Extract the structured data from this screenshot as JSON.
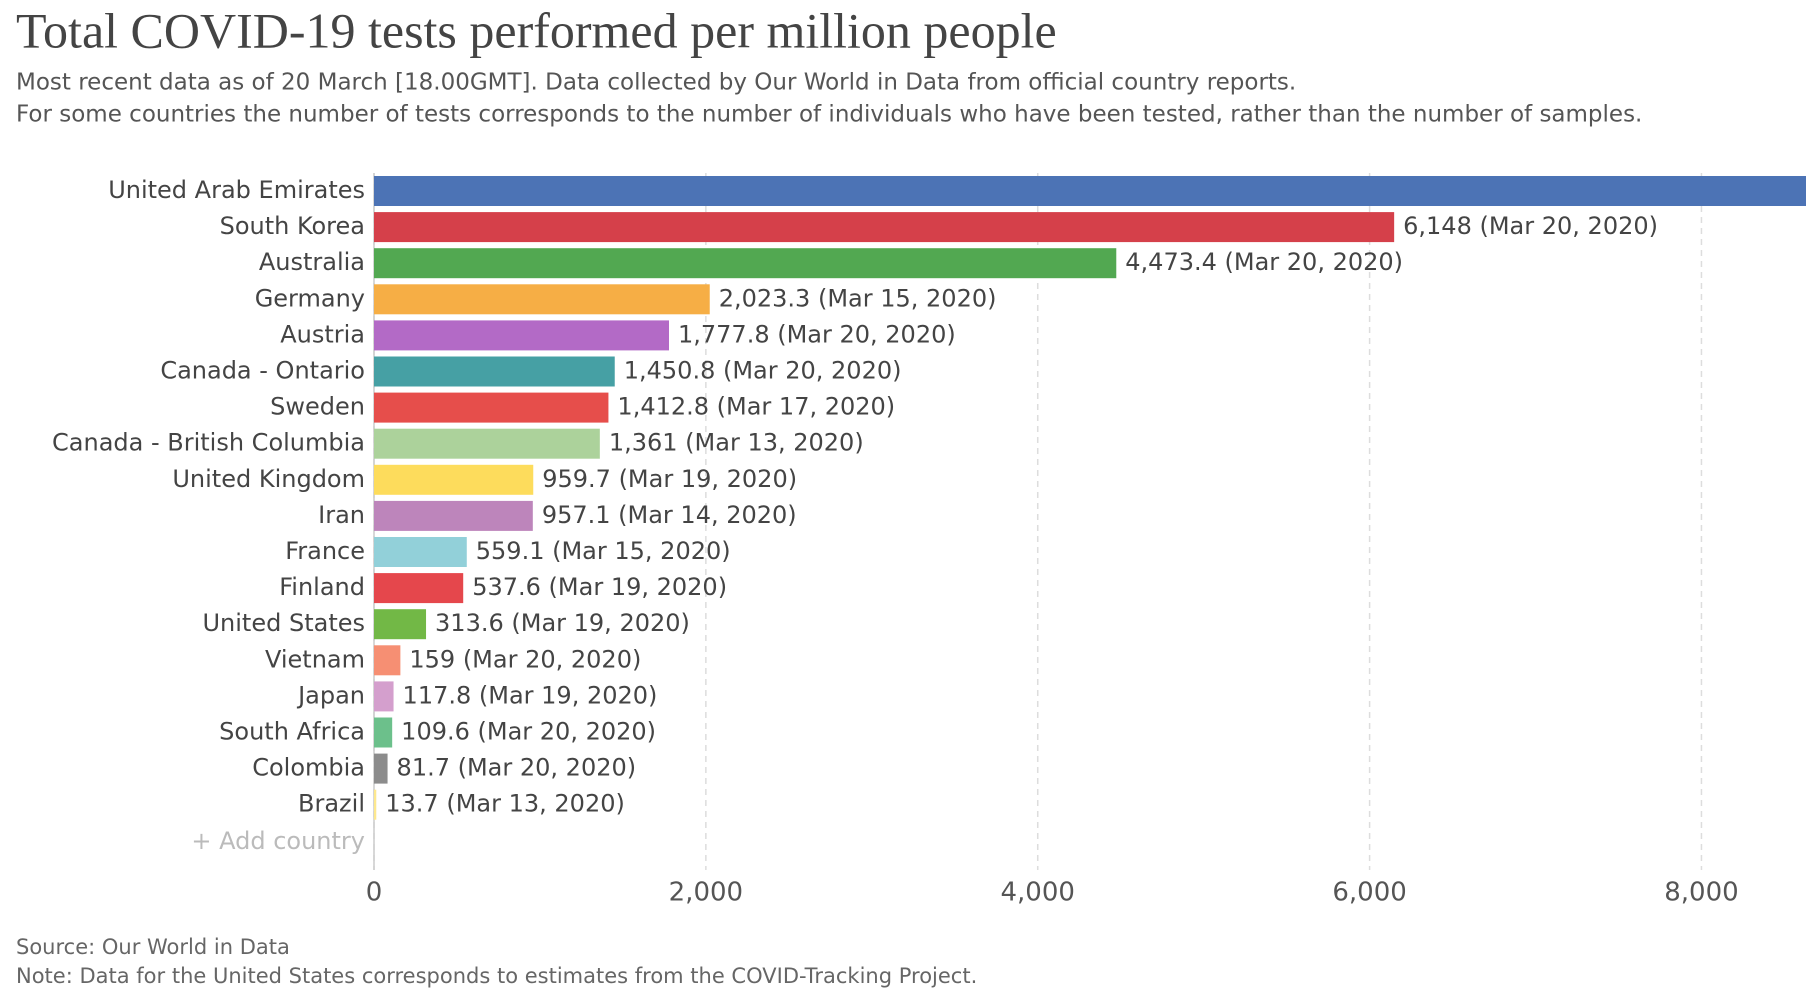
{
  "chart_data": {
    "type": "bar",
    "orientation": "horizontal",
    "title": "Total COVID-19 tests performed per million people",
    "subtitle": [
      "Most recent data as of 20 March [18.00GMT]. Data collected by Our World in Data from official country reports.",
      "For some countries the number of tests corresponds to the number of individuals who have been tested, rather than the number of samples."
    ],
    "categories": [
      "United Arab Emirates",
      "South Korea",
      "Australia",
      "Germany",
      "Austria",
      "Canada - Ontario",
      "Sweden",
      "Canada - British Columbia",
      "United Kingdom",
      "Iran",
      "France",
      "Finland",
      "United States",
      "Vietnam",
      "Japan",
      "South Africa",
      "Colombia",
      "Brazil"
    ],
    "values": [
      8630,
      6148,
      4473.4,
      2023.3,
      1777.8,
      1450.8,
      1412.8,
      1361,
      959.7,
      957.1,
      559.1,
      537.6,
      313.6,
      159,
      117.8,
      109.6,
      81.7,
      13.7
    ],
    "value_labels": [
      null,
      "6,148 (Mar 20, 2020)",
      "4,473.4 (Mar 20, 2020)",
      "2,023.3 (Mar 15, 2020)",
      "1,777.8 (Mar 20, 2020)",
      "1,450.8 (Mar 20, 2020)",
      "1,412.8 (Mar 17, 2020)",
      "1,361 (Mar 13, 2020)",
      "959.7 (Mar 19, 2020)",
      "957.1 (Mar 14, 2020)",
      "559.1 (Mar 15, 2020)",
      "537.6 (Mar 19, 2020)",
      "313.6 (Mar 19, 2020)",
      "159 (Mar 20, 2020)",
      "117.8 (Mar 19, 2020)",
      "109.6 (Mar 20, 2020)",
      "81.7 (Mar 20, 2020)",
      "13.7 (Mar 13, 2020)"
    ],
    "colors": [
      "#4c73b5",
      "#d5404a",
      "#52a851",
      "#f6ae45",
      "#b36ac6",
      "#46a0a4",
      "#e64e4b",
      "#acd29b",
      "#fddc5c",
      "#bd85bb",
      "#92d0d9",
      "#e5474c",
      "#72b846",
      "#f68f73",
      "#d49fcd",
      "#6cc08b",
      "#8c8c8c",
      "#fde88e"
    ],
    "xlim": [
      0,
      8630
    ],
    "xticks": [
      0,
      {
        "value": 2000,
        "label": "2,000"
      },
      {
        "value": 4000,
        "label": "4,000"
      },
      {
        "value": 6000,
        "label": "6,000"
      },
      {
        "value": 8000,
        "label": "8,000"
      }
    ],
    "grid": true,
    "add_button": "+ Add country",
    "source": "Source: Our World in Data",
    "note": "Note: Data for the United States corresponds to estimates from the COVID-Tracking Project."
  }
}
